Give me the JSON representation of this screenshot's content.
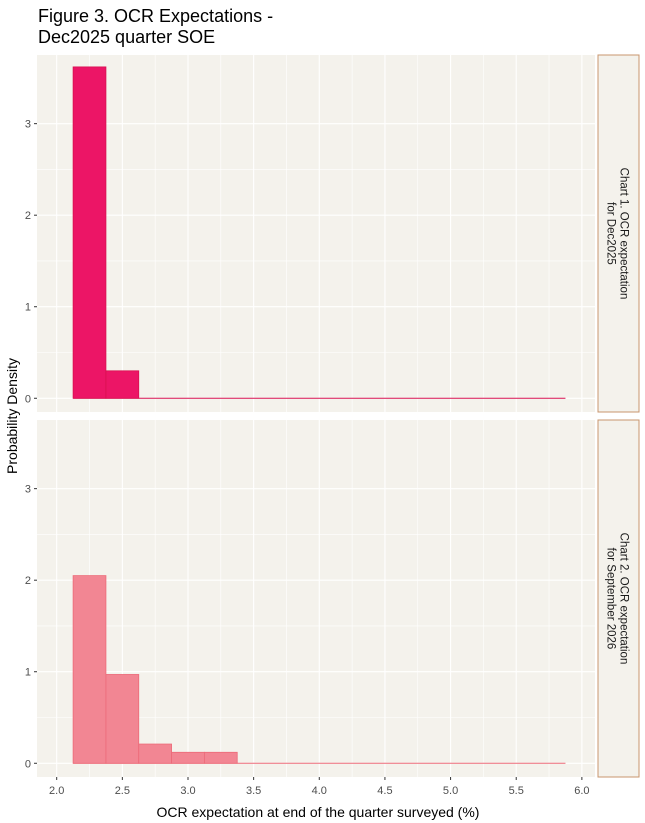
{
  "title_lines": [
    "Figure 3. OCR Expectations -",
    "Dec2025 quarter SOE"
  ],
  "xlabel": "OCR expectation at end of the quarter surveyed (%)",
  "ylabel": "Probability Density",
  "chart_data": {
    "type": "bar",
    "x_ticks": [
      "2.0",
      "2.5",
      "3.0",
      "3.5",
      "4.0",
      "4.5",
      "5.0",
      "5.5",
      "6.0"
    ],
    "xlim": [
      1.85,
      6.1
    ],
    "y_ticks": [
      "0",
      "1",
      "2",
      "3"
    ],
    "ylim": [
      -0.15,
      3.75
    ],
    "bin_width": 0.25,
    "range": [
      2.125,
      5.875
    ],
    "grid": true,
    "panels": [
      {
        "strip_lines": [
          "Chart 1. OCR expectation",
          "for Dec2025"
        ],
        "fill": "#ec1566",
        "stroke": "#d81050",
        "bins": [
          {
            "x0": 2.125,
            "x1": 2.375,
            "density": 3.62
          },
          {
            "x0": 2.375,
            "x1": 2.625,
            "density": 0.3
          }
        ]
      },
      {
        "strip_lines": [
          "Chart 2. OCR expectation",
          "for September 2026"
        ],
        "fill": "#f28693",
        "stroke": "#ec6a78",
        "bins": [
          {
            "x0": 2.125,
            "x1": 2.375,
            "density": 2.05
          },
          {
            "x0": 2.375,
            "x1": 2.625,
            "density": 0.97
          },
          {
            "x0": 2.625,
            "x1": 2.875,
            "density": 0.21
          },
          {
            "x0": 2.875,
            "x1": 3.125,
            "density": 0.12
          },
          {
            "x0": 3.125,
            "x1": 3.375,
            "density": 0.12
          }
        ]
      }
    ]
  }
}
